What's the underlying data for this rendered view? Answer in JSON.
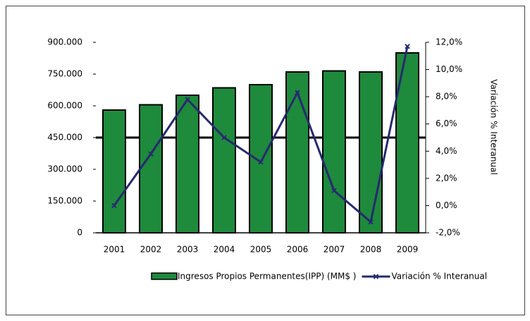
{
  "chart_data": {
    "type": "bar",
    "categories": [
      "2001",
      "2002",
      "2003",
      "2004",
      "2005",
      "2006",
      "2007",
      "2008",
      "2009"
    ],
    "series": [
      {
        "name": "Ingresos Propios Permanentes(IPP) (MM$ )",
        "type": "bar",
        "color": "#1e8a3c",
        "values": [
          580000,
          605000,
          650000,
          685000,
          700000,
          760000,
          765000,
          760000,
          850000
        ]
      },
      {
        "name": "Variación % Interanual",
        "type": "line",
        "axis": "y2",
        "color": "#262a6e",
        "values": [
          0.0,
          3.8,
          7.8,
          5.0,
          3.2,
          8.3,
          1.1,
          -1.2,
          11.7
        ]
      }
    ],
    "y2label": "Variación % Interanual",
    "ylim": [
      0,
      900000
    ],
    "yticks": [
      0,
      {
        "value": 150000,
        "label": "150.000"
      },
      {
        "value": 300000,
        "label": "300.000"
      },
      {
        "value": 450000,
        "label": "450.000"
      },
      {
        "value": 600000,
        "label": "600.000"
      },
      {
        "value": 750000,
        "label": "750.000"
      },
      {
        "value": 900000,
        "label": "900.000"
      }
    ],
    "y2lim": [
      -2,
      12
    ],
    "y2ticks": [
      {
        "value": -2,
        "label": "-2,0%"
      },
      {
        "value": 0,
        "label": "0,0%"
      },
      {
        "value": 2,
        "label": "2,0%"
      },
      {
        "value": 4,
        "label": "4,0%"
      },
      {
        "value": 6,
        "label": "6,0%"
      },
      {
        "value": 8,
        "label": "8,0%"
      },
      {
        "value": 10,
        "label": "10,0%"
      },
      {
        "value": 12,
        "label": "12,0%"
      }
    ]
  }
}
